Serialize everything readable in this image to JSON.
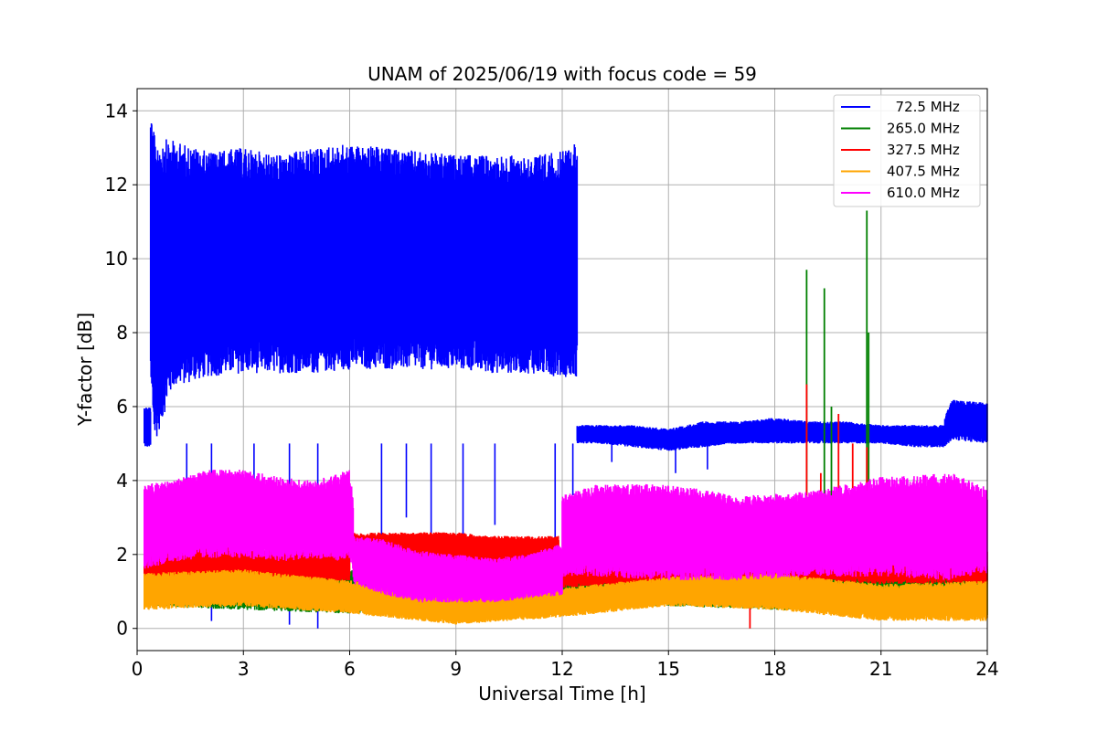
{
  "chart_data": {
    "type": "line",
    "title": "UNAM of 2025/06/19 with focus code = 59",
    "xlabel": "Universal Time [h]",
    "ylabel": "Y-factor [dB]",
    "xlim": [
      0,
      24
    ],
    "ylim": [
      -0.6,
      14.6
    ],
    "xticks": [
      0,
      3,
      6,
      9,
      12,
      15,
      18,
      21,
      24
    ],
    "yticks": [
      0,
      2,
      4,
      6,
      8,
      10,
      12,
      14
    ],
    "grid": true,
    "legend_position": "top-right",
    "series": [
      {
        "name": " 72.5 MHz",
        "color": "#0000ff",
        "segments": [
          {
            "x": [
              0.2,
              0.38
            ],
            "low": [
              4.9,
              4.9
            ],
            "high": [
              6.0,
              6.0
            ],
            "note_shape": "band"
          },
          {
            "x": [
              0.38,
              0.5,
              1.0,
              2.0,
              3.0,
              4.0,
              5.0,
              6.0,
              7.0,
              8.0,
              9.0,
              10.0,
              11.0,
              12.0,
              12.42
            ],
            "low": [
              6.3,
              5.0,
              6.5,
              6.8,
              6.9,
              6.9,
              6.9,
              7.0,
              7.0,
              7.0,
              7.0,
              6.9,
              6.9,
              6.8,
              6.8
            ],
            "high": [
              13.9,
              13.3,
              13.2,
              12.9,
              13.0,
              12.8,
              13.0,
              13.1,
              13.0,
              12.9,
              12.8,
              12.8,
              12.8,
              12.9,
              13.2
            ]
          },
          {
            "x": [
              12.42,
              13.0,
              14.0,
              15.0,
              16.0,
              17.0,
              18.0,
              19.0,
              20.0,
              21.0,
              22.0,
              22.8
            ],
            "low": [
              5.0,
              5.0,
              4.9,
              4.8,
              4.9,
              5.0,
              5.0,
              5.0,
              5.0,
              5.0,
              4.9,
              4.9
            ],
            "high": [
              5.5,
              5.5,
              5.5,
              5.4,
              5.6,
              5.6,
              5.7,
              5.6,
              5.6,
              5.5,
              5.5,
              5.5
            ]
          },
          {
            "x": [
              22.8,
              23.0,
              24.0
            ],
            "low": [
              4.9,
              5.1,
              5.0
            ],
            "high": [
              5.7,
              6.2,
              6.1
            ]
          }
        ],
        "dips": [
          [
            2.1,
            0.2
          ],
          [
            4.3,
            0.1
          ],
          [
            5.1,
            0.0
          ],
          [
            6.9,
            1.2
          ],
          [
            8.3,
            2.2
          ],
          [
            9.2,
            2.4
          ],
          [
            10.1,
            2.8
          ],
          [
            11.8,
            2.4
          ],
          [
            1.4,
            3.4
          ],
          [
            3.3,
            2.8
          ],
          [
            7.6,
            3.0
          ],
          [
            12.3,
            3.6
          ],
          [
            13.4,
            4.5
          ],
          [
            15.2,
            4.2
          ],
          [
            16.1,
            4.3
          ]
        ]
      },
      {
        "name": "265.0 MHz",
        "color": "#008000",
        "segments": [
          {
            "x": [
              0.2,
              3.0,
              6.0,
              9.0,
              12.0,
              15.0,
              18.0,
              21.0,
              24.0
            ],
            "low": [
              0.6,
              0.5,
              0.4,
              0.5,
              0.6,
              0.6,
              0.5,
              0.4,
              0.3
            ],
            "high": [
              1.7,
              1.8,
              1.6,
              1.4,
              1.5,
              1.6,
              1.6,
              1.8,
              1.7
            ]
          }
        ],
        "spikes": [
          [
            18.9,
            9.7
          ],
          [
            19.4,
            9.2
          ],
          [
            19.6,
            6.0
          ],
          [
            20.6,
            11.3
          ],
          [
            20.65,
            8.0
          ]
        ]
      },
      {
        "name": "327.5 MHz",
        "color": "#ff0000",
        "segments": [
          {
            "x": [
              0.2,
              2.0,
              4.0,
              6.0
            ],
            "low": [
              1.2,
              1.2,
              1.1,
              1.3
            ],
            "high": [
              2.2,
              2.4,
              2.1,
              2.2
            ]
          },
          {
            "x": [
              6.1,
              7.0,
              8.0,
              9.0,
              10.0,
              11.0,
              11.9
            ],
            "low": [
              1.6,
              1.8,
              1.9,
              1.8,
              1.7,
              1.7,
              1.7
            ],
            "high": [
              2.6,
              2.6,
              2.6,
              2.6,
              2.5,
              2.5,
              2.5
            ]
          },
          {
            "x": [
              12.0,
              15.0,
              18.0,
              21.0,
              24.0
            ],
            "low": [
              1.1,
              1.2,
              1.3,
              1.2,
              1.2
            ],
            "high": [
              2.0,
              2.1,
              2.3,
              2.2,
              2.2
            ]
          }
        ],
        "spikes": [
          [
            18.9,
            6.6
          ],
          [
            19.3,
            4.2
          ],
          [
            19.8,
            5.8
          ],
          [
            20.2,
            5.0
          ],
          [
            20.6,
            4.9
          ],
          [
            17.3,
            0.0
          ]
        ]
      },
      {
        "name": "407.5 MHz",
        "color": "#ffa500",
        "segments": [
          {
            "x": [
              0.2,
              3.0,
              6.0,
              9.0,
              12.0,
              15.0,
              18.0,
              21.0,
              24.0
            ],
            "low": [
              0.5,
              0.6,
              0.4,
              0.1,
              0.3,
              0.6,
              0.5,
              0.2,
              0.2
            ],
            "high": [
              1.5,
              1.6,
              1.3,
              0.9,
              1.1,
              1.4,
              1.5,
              1.2,
              1.3
            ]
          }
        ]
      },
      {
        "name": "610.0 MHz",
        "color": "#ff00ff",
        "segments": [
          {
            "x": [
              0.2,
              1.0,
              2.0,
              3.0,
              4.0,
              5.0,
              6.0,
              6.1
            ],
            "low": [
              1.6,
              1.8,
              1.9,
              1.9,
              1.8,
              1.9,
              1.8,
              1.5
            ],
            "high": [
              3.9,
              4.0,
              4.3,
              4.3,
              4.1,
              4.0,
              4.3,
              3.5
            ]
          },
          {
            "x": [
              6.1,
              7.0,
              8.0,
              9.0,
              10.0,
              11.0,
              12.0
            ],
            "low": [
              1.2,
              0.9,
              0.7,
              0.7,
              0.7,
              0.8,
              0.9
            ],
            "high": [
              2.5,
              2.4,
              2.1,
              2.0,
              1.9,
              2.0,
              2.3
            ]
          },
          {
            "x": [
              12.0,
              13.0,
              15.0,
              17.0,
              19.0,
              21.0,
              23.0,
              24.0
            ],
            "low": [
              1.4,
              1.4,
              1.3,
              1.3,
              1.4,
              1.4,
              1.3,
              1.5
            ],
            "high": [
              3.6,
              3.9,
              3.9,
              3.6,
              3.7,
              4.1,
              4.2,
              3.8
            ]
          }
        ]
      }
    ]
  }
}
